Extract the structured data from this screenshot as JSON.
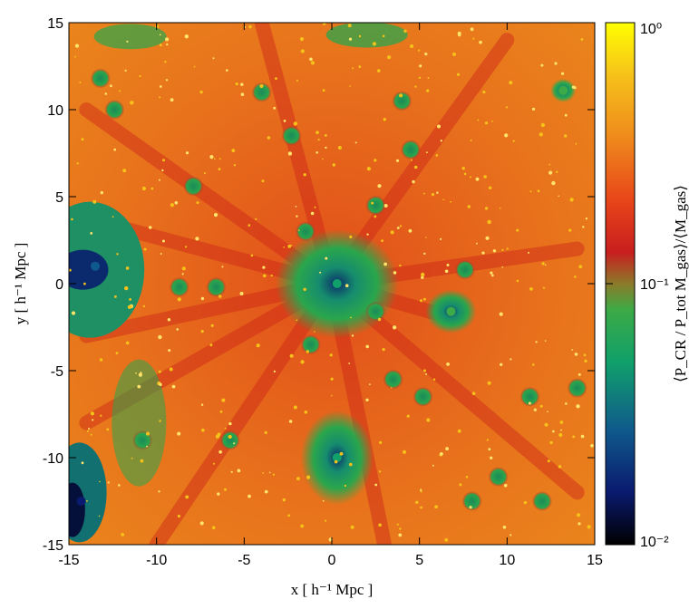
{
  "chart_data": {
    "type": "heatmap",
    "title": "",
    "xlabel": "x [ h⁻¹ Mpc ]",
    "ylabel": "y [ h⁻¹ Mpc ]",
    "xlim": [
      -15,
      15
    ],
    "ylim": [
      -15,
      15
    ],
    "x_ticks": [
      -15,
      -10,
      -5,
      0,
      5,
      10,
      15
    ],
    "y_ticks": [
      -15,
      -10,
      -5,
      0,
      5,
      10,
      15
    ],
    "colorbar": {
      "label": "⟨P_CR / P_tot M_gas⟩/⟨M_gas⟩",
      "scale": "log",
      "range": [
        0.01,
        1
      ],
      "tick_labels": [
        "10⁰",
        "10⁻¹",
        "10⁻²"
      ],
      "tick_values": [
        1,
        0.1,
        0.01
      ],
      "colormap": [
        "#000000",
        "#0a1a6e",
        "#0f5a8c",
        "#10a06a",
        "#3caa46",
        "#8c7a2a",
        "#c81e1e",
        "#e8461a",
        "#ef8a1c",
        "#f6c21a",
        "#ffff00"
      ]
    },
    "structures": [
      {
        "name": "central cluster",
        "x": 0.3,
        "y": 0.0,
        "value": 0.05
      },
      {
        "name": "southern group",
        "x": 0.3,
        "y": -10.0,
        "value": 0.05
      },
      {
        "name": "eastern group",
        "x": 6.8,
        "y": -1.6,
        "value": 0.06
      },
      {
        "name": "north-east group",
        "x": 13.2,
        "y": 11.1,
        "value": 0.07
      },
      {
        "name": "western void",
        "x": -13.5,
        "y": 1.0,
        "value": 0.02
      },
      {
        "name": "south-west void",
        "x": -14.3,
        "y": -12.5,
        "value": 0.015
      }
    ]
  }
}
